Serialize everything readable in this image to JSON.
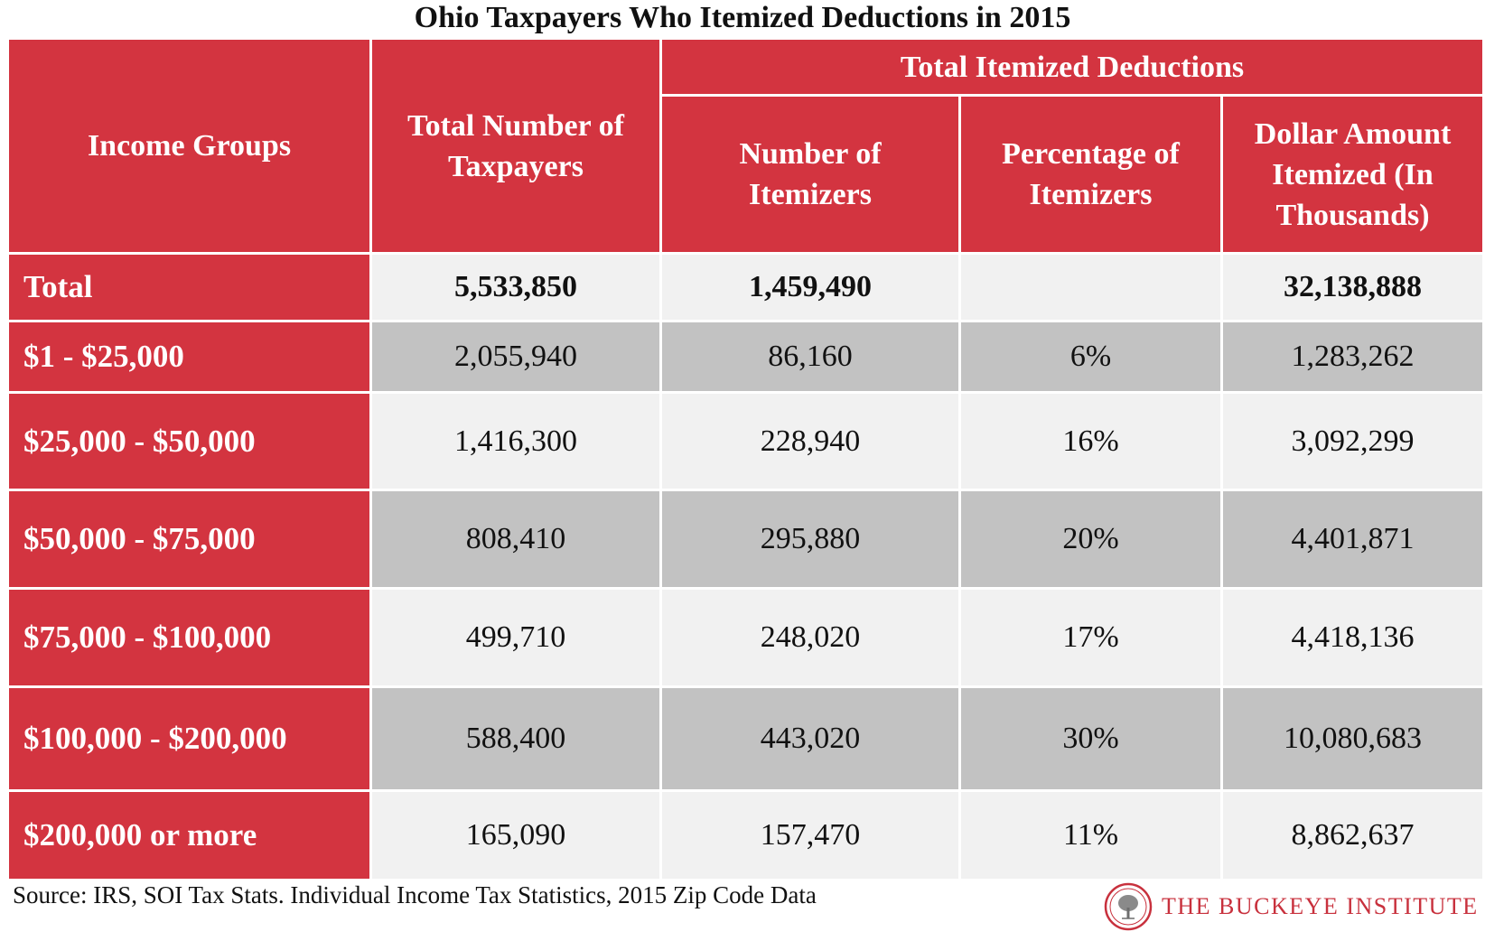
{
  "title": "Ohio Taxpayers Who Itemized Deductions in 2015",
  "colors": {
    "header_red": "#d33440",
    "light_row": "#f1f1f1",
    "gray_row": "#c2c2c2"
  },
  "headers": {
    "income_groups": "Income Groups",
    "total_taxpayers": "Total Number of Taxpayers",
    "group": "Total Itemized Deductions",
    "num_itemizers": "Number of Itemizers",
    "pct_itemizers": "Percentage of Itemizers",
    "dollar_amount": "Dollar Amount Itemized (In Thousands)"
  },
  "rows": [
    {
      "group": "Total",
      "taxpayers": "5,533,850",
      "itemizers": "1,459,490",
      "percent": "",
      "amount": "32,138,888"
    },
    {
      "group": "$1 - $25,000",
      "taxpayers": "2,055,940",
      "itemizers": "86,160",
      "percent": "6%",
      "amount": "1,283,262"
    },
    {
      "group": "$25,000 - $50,000",
      "taxpayers": "1,416,300",
      "itemizers": "228,940",
      "percent": "16%",
      "amount": "3,092,299"
    },
    {
      "group": "$50,000 - $75,000",
      "taxpayers": "808,410",
      "itemizers": "295,880",
      "percent": "20%",
      "amount": "4,401,871"
    },
    {
      "group": "$75,000 - $100,000",
      "taxpayers": "499,710",
      "itemizers": "248,020",
      "percent": "17%",
      "amount": "4,418,136"
    },
    {
      "group": "$100,000 - $200,000",
      "taxpayers": "588,400",
      "itemizers": "443,020",
      "percent": "30%",
      "amount": "10,080,683"
    },
    {
      "group": "$200,000 or more",
      "taxpayers": "165,090",
      "itemizers": "157,470",
      "percent": "11%",
      "amount": "8,862,637"
    }
  ],
  "source": "Source: IRS, SOI Tax Stats. Individual Income Tax Statistics, 2015 Zip Code Data",
  "logo": {
    "text": "THE BUCKEYE INSTITUTE",
    "icon": "tree-seal-icon"
  }
}
